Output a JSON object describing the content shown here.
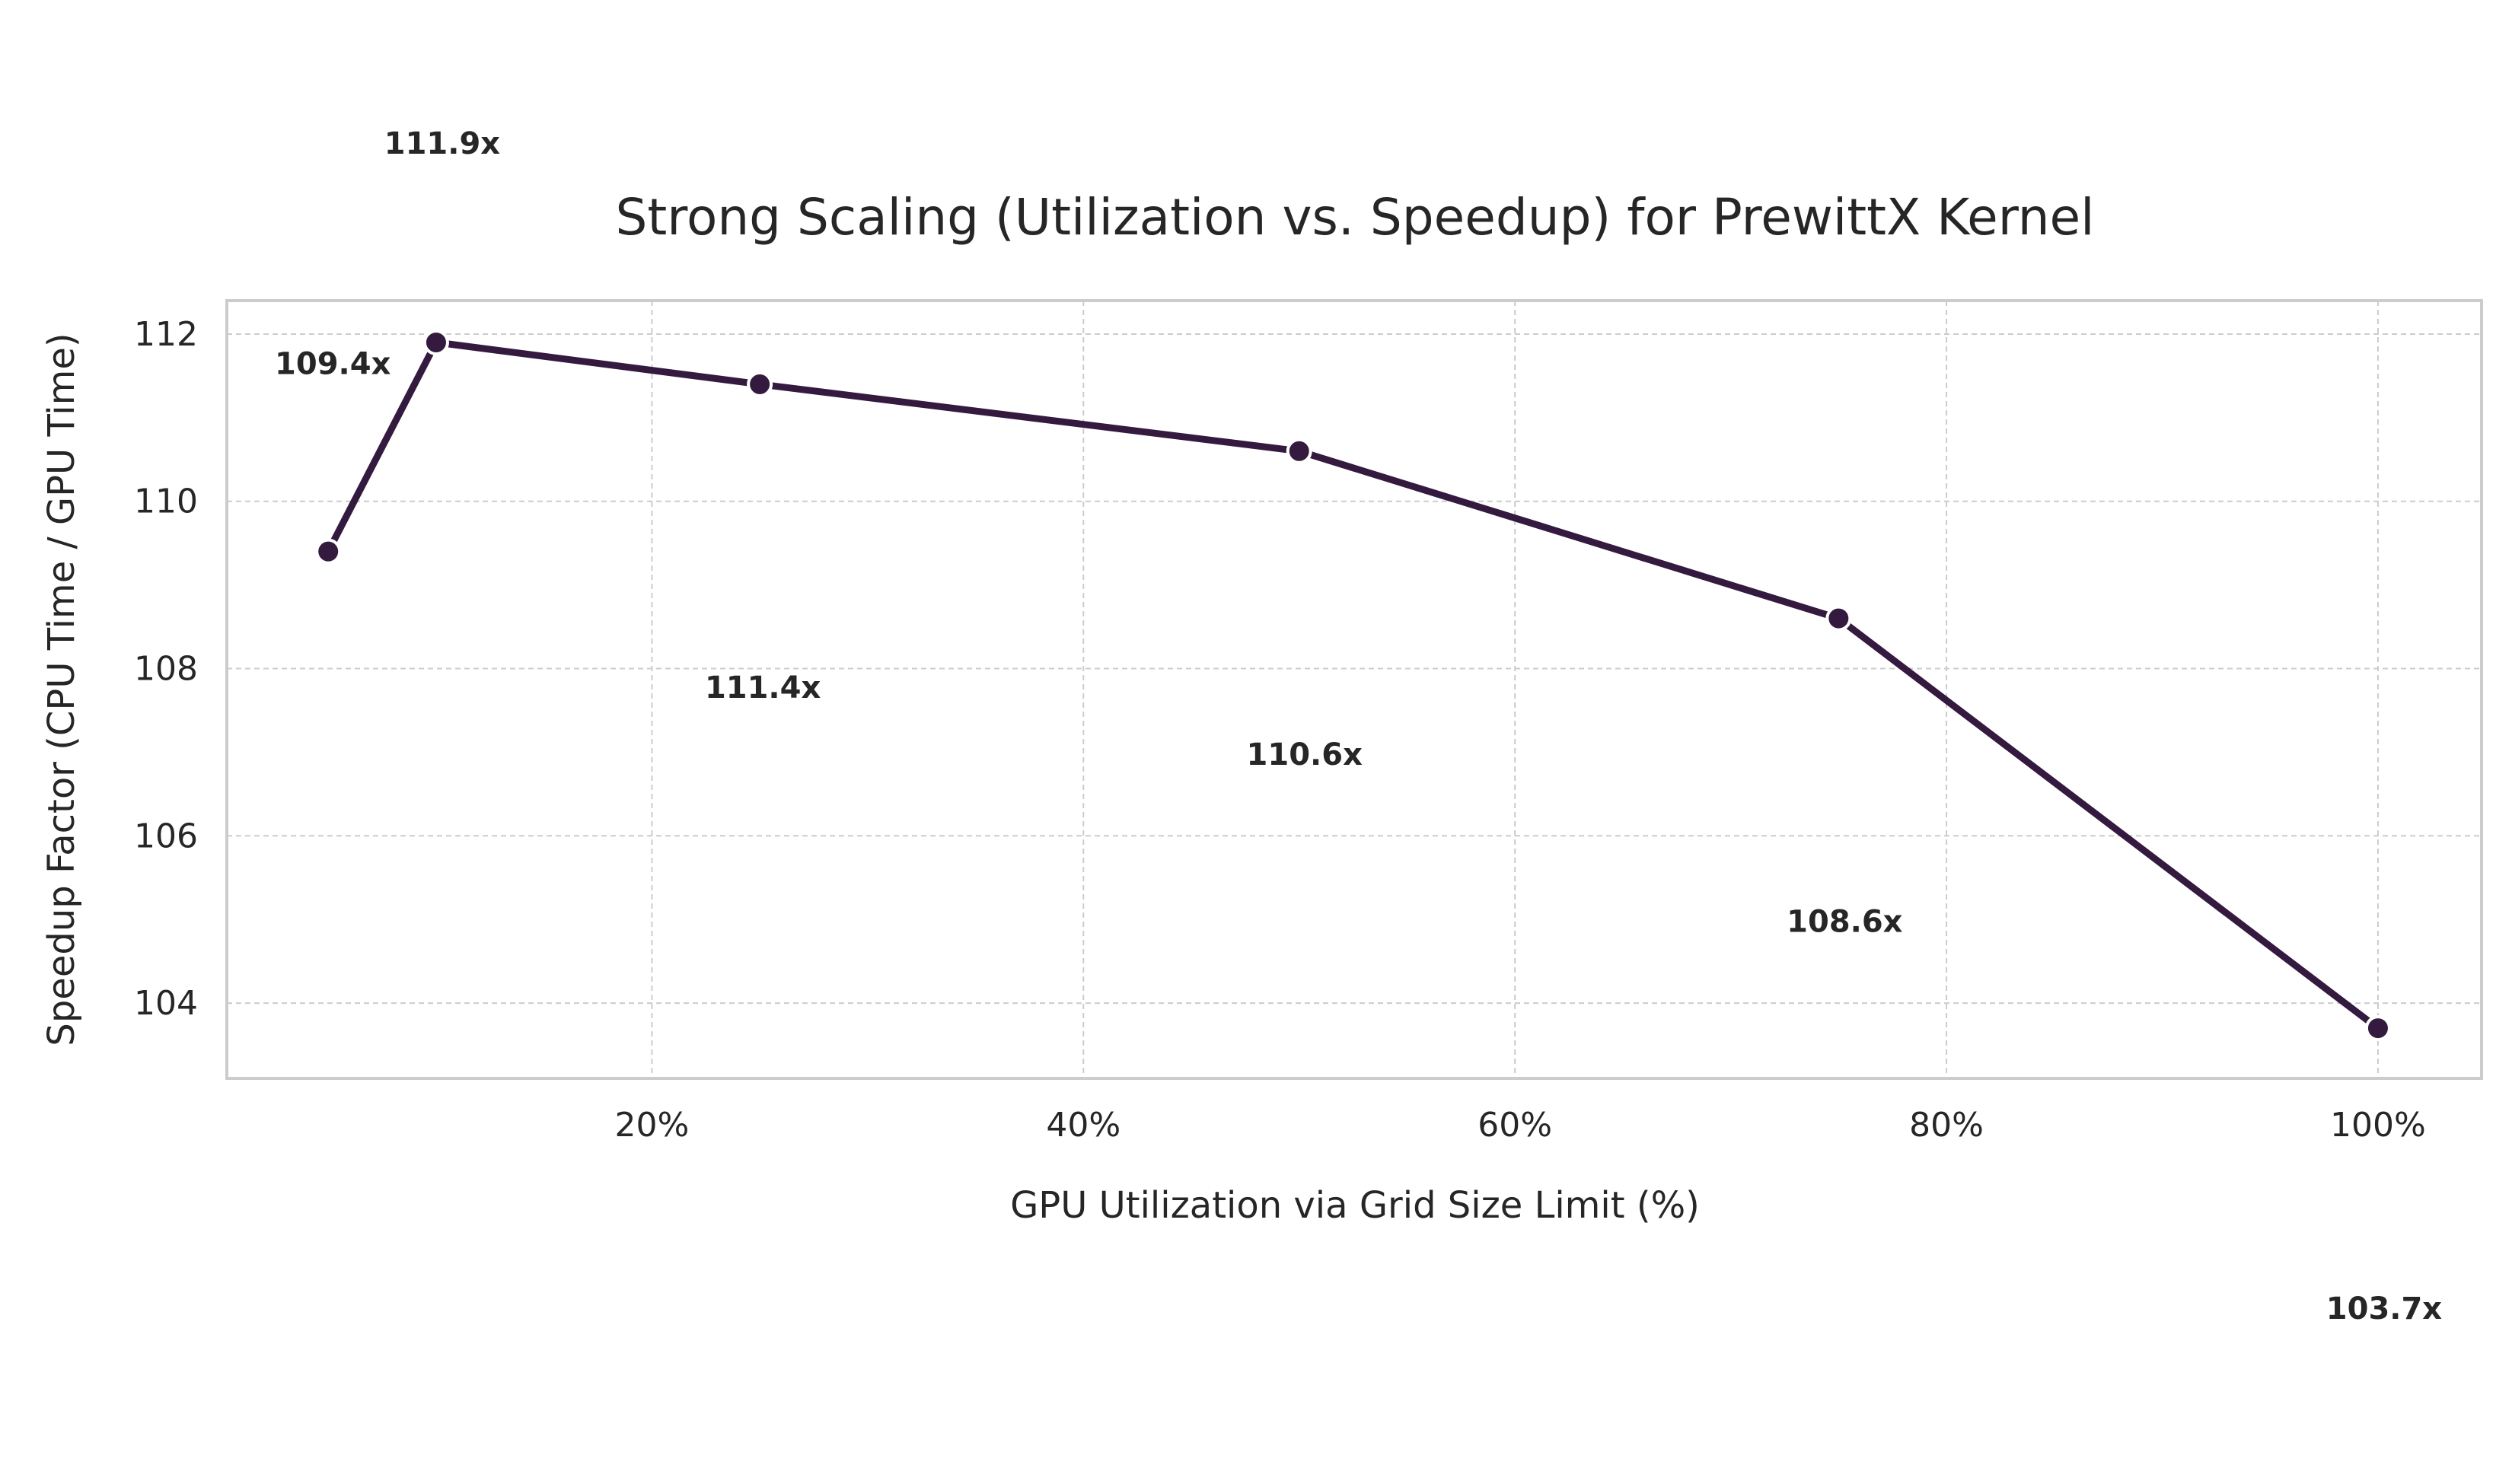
{
  "chart_data": {
    "type": "line",
    "title": "Strong Scaling (Utilization vs. Speedup) for PrewittX Kernel",
    "xlabel": "GPU Utilization via Grid Size Limit (%)",
    "ylabel": "Speedup Factor (CPU Time / GPU Time)",
    "x": [
      5,
      10,
      25,
      50,
      75,
      100
    ],
    "series": [
      {
        "values": [
          109.4,
          111.9,
          111.4,
          110.6,
          108.6,
          103.7
        ]
      }
    ],
    "data_labels": [
      "109.4x",
      "111.9x",
      "111.4x",
      "110.6x",
      "108.6x",
      "103.7x"
    ],
    "x_ticks": [
      20,
      40,
      60,
      80,
      100
    ],
    "x_tick_labels": [
      "20%",
      "40%",
      "60%",
      "80%",
      "100%"
    ],
    "y_ticks": [
      104,
      106,
      108,
      110,
      112
    ],
    "y_tick_labels": [
      "104",
      "106",
      "108",
      "110",
      "112"
    ],
    "xlim": [
      0.3,
      104.8
    ],
    "ylim": [
      103.1,
      112.4
    ],
    "grid": true,
    "line_color": "#331a3e",
    "marker_color": "#331a3e"
  }
}
